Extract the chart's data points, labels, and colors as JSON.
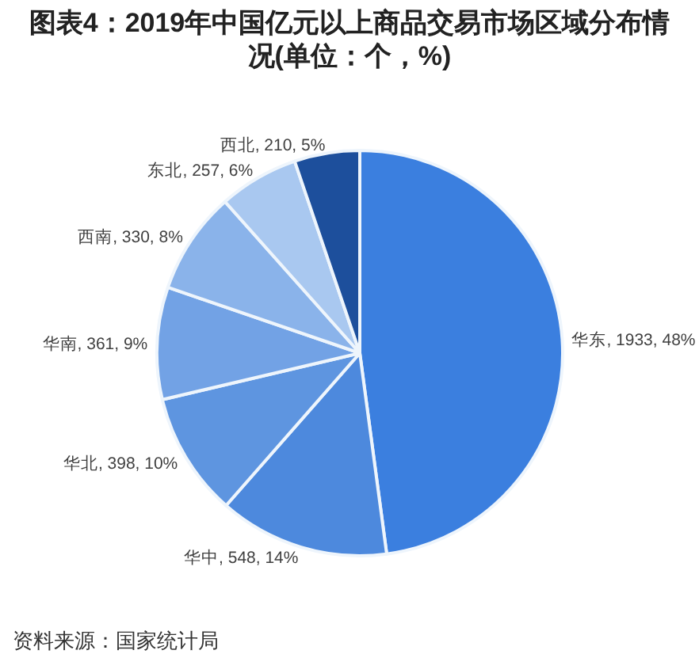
{
  "chart_data": {
    "type": "pie",
    "title": "图表4：2019年中国亿元以上商品交易市场区域分布情况(单位：个，%)",
    "categories": [
      "华东",
      "华中",
      "华北",
      "华南",
      "西南",
      "东北",
      "西北"
    ],
    "values": [
      1933,
      548,
      398,
      361,
      330,
      257,
      210
    ],
    "colors": [
      "#3b7fdf",
      "#4d89dd",
      "#5e95e0",
      "#72a2e5",
      "#8ab3ea",
      "#a9c8f0",
      "#1d4f9c"
    ],
    "value_labels": [
      ", 1933, 48%",
      ", 548, 14%",
      ", 398, 10%",
      ", 361, 9%",
      ", 330, 8%",
      ", 257, 6%",
      ", 210, 5%"
    ],
    "annotations": [
      "资料来源：国家统计局"
    ]
  }
}
